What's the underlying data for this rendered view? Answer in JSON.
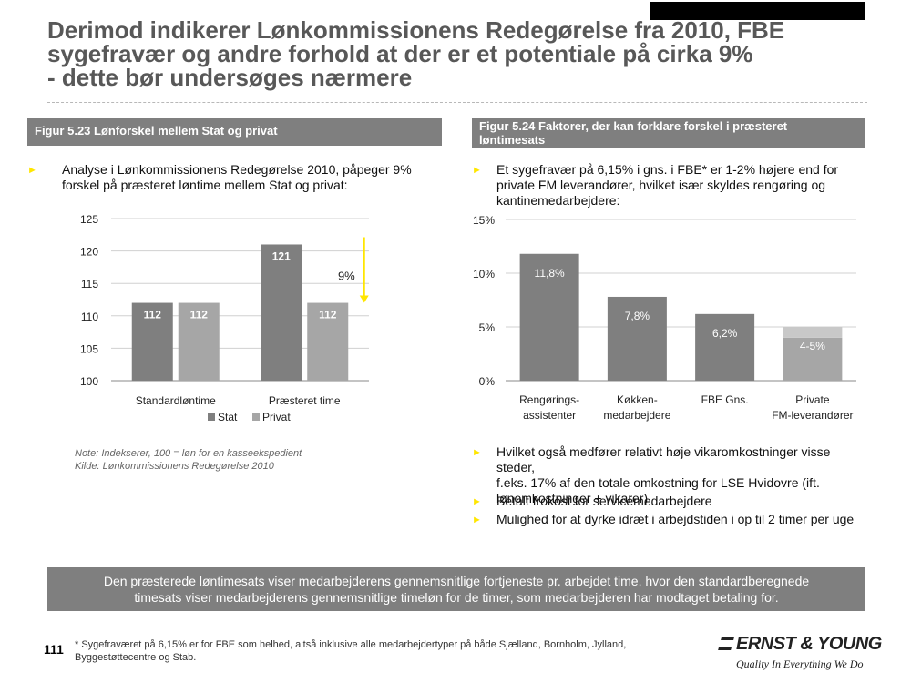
{
  "title": {
    "line1": "Derimod indikerer Lønkommissionens Redegørelse fra 2010, FBE",
    "line2": "sygefravær og andre forhold at der er et potentiale på cirka 9%",
    "line3": "-  dette bør undersøges nærmere"
  },
  "left": {
    "header": "Figur 5.23 Lønforskel mellem Stat og privat",
    "bullet_line1": "Analyse i Lønkommissionens Redegørelse 2010, påpeger 9%",
    "bullet_line2": "forskel på præsteret løntime mellem Stat og privat:",
    "note_line1": "Note: Indekserer, 100 = løn for en kasseekspedient",
    "note_line2": "Kilde: Lønkommissionens Redegørelse 2010"
  },
  "right": {
    "header_line1": "Figur 5.24 Faktorer, der kan forklare forskel i præsteret",
    "header_line2": "løntimesats",
    "bullet1_line1": "Et sygefravær på 6,15% i gns. i FBE* er 1-2% højere end for",
    "bullet1_line2": "private FM leverandører, hvilket især skyldes rengøring og",
    "bullet1_line3": "kantinemedarbejdere:",
    "bullet2_line1": "Hvilket også medfører relativt høje vikaromkostninger visse steder,",
    "bullet2_line2": "f.eks. 17% af den totale omkostning for LSE Hvidovre (ift.",
    "bullet2_line3": "lønomkostninger + vikarer)",
    "bullet3": "Betalt frokost for servicemedarbejdere",
    "bullet4": "Mulighed for at dyrke idræt i arbejdstiden i op til 2 timer per uge"
  },
  "summary": {
    "line1": "Den præsterede løntimesats viser medarbejderens gennemsnitlige fortjeneste pr. arbejdet time, hvor den standardberegnede",
    "line2": "timesats viser medarbejderens gennemsnitlige timeløn for de timer, som medarbejderen har modtaget betaling for."
  },
  "footer": {
    "page_number": "111",
    "footnote_line1": "* Sygefraværet på 6,15% er for FBE som helhed, altså inklusive alle medarbejdertyper på både Sjælland, Bornholm, Jylland,",
    "footnote_line2": "Byggestøttecentre og Stab.",
    "logo": "ERNST & YOUNG",
    "tagline": "Quality In Everything We Do"
  },
  "colors": {
    "accent": "#ffe600",
    "stat": "#7f7f7f",
    "privat": "#a6a6a6",
    "header_bg": "#7f7f7f"
  },
  "chart_data": [
    {
      "type": "bar",
      "categories": [
        "Standardløntime",
        "Præsteret time"
      ],
      "series": [
        {
          "name": "Stat",
          "values": [
            112,
            121
          ],
          "labels": [
            "112",
            "121"
          ]
        },
        {
          "name": "Privat",
          "values": [
            112,
            112
          ],
          "labels": [
            "112",
            "112"
          ]
        }
      ],
      "y_ticks": [
        "125",
        "120",
        "115",
        "110",
        "105",
        "100"
      ],
      "ylim": [
        100,
        125
      ],
      "annotation": "9%",
      "legend": "bottom",
      "grid": true
    },
    {
      "type": "bar",
      "categories_line1": [
        "Rengørings-",
        "Køkken-",
        "FBE Gns.",
        "Private"
      ],
      "categories_line2": [
        "assistenter",
        "medarbejdere",
        "",
        "FM-leverandører"
      ],
      "values": [
        11.8,
        7.8,
        6.2,
        5
      ],
      "range_low": [
        null,
        null,
        null,
        4
      ],
      "labels": [
        "11,8%",
        "7,8%",
        "6,2%",
        "4-5%"
      ],
      "y_ticks": [
        "15%",
        "10%",
        "5%",
        "0%"
      ],
      "ylim": [
        0,
        15
      ],
      "grid": true
    }
  ]
}
